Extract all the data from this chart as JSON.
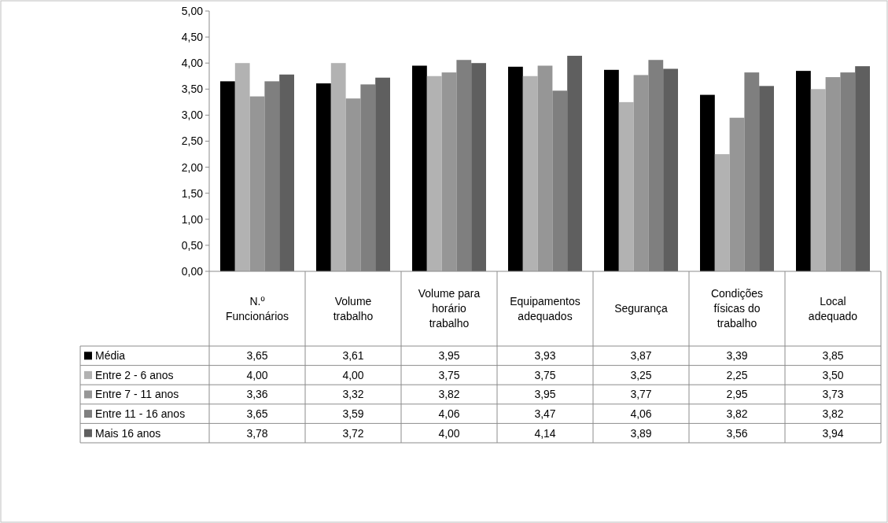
{
  "chart_data": {
    "type": "bar",
    "categories": [
      "N.º Funcionários",
      "Volume trabalho",
      "Volume para horário trabalho",
      "Equipamentos adequados",
      "Segurança",
      "Condições físicas do trabalho",
      "Local adequado"
    ],
    "series": [
      {
        "name": "Média",
        "color": "#000000",
        "values": [
          3.65,
          3.61,
          3.95,
          3.93,
          3.87,
          3.39,
          3.85
        ],
        "value_labels": [
          "3,65",
          "3,61",
          "3,95",
          "3,93",
          "3,87",
          "3,39",
          "3,85"
        ]
      },
      {
        "name": "Entre 2 - 6 anos",
        "color": "#b2b2b2",
        "values": [
          4.0,
          4.0,
          3.75,
          3.75,
          3.25,
          2.25,
          3.5
        ],
        "value_labels": [
          "4,00",
          "4,00",
          "3,75",
          "3,75",
          "3,25",
          "2,25",
          "3,50"
        ]
      },
      {
        "name": "Entre 7 - 11 anos",
        "color": "#969696",
        "values": [
          3.36,
          3.32,
          3.82,
          3.95,
          3.77,
          2.95,
          3.73
        ],
        "value_labels": [
          "3,36",
          "3,32",
          "3,82",
          "3,95",
          "3,77",
          "2,95",
          "3,73"
        ]
      },
      {
        "name": "Entre 11 - 16 anos",
        "color": "#7f7f7f",
        "values": [
          3.65,
          3.59,
          4.06,
          3.47,
          4.06,
          3.82,
          3.82
        ],
        "value_labels": [
          "3,65",
          "3,59",
          "4,06",
          "3,47",
          "4,06",
          "3,82",
          "3,82"
        ]
      },
      {
        "name": "Mais 16 anos",
        "color": "#5f5f5f",
        "values": [
          3.78,
          3.72,
          4.0,
          4.14,
          3.89,
          3.56,
          3.94
        ],
        "value_labels": [
          "3,78",
          "3,72",
          "4,00",
          "4,14",
          "3,89",
          "3,56",
          "3,94"
        ]
      }
    ],
    "ylim": [
      0,
      5
    ],
    "yticks": [
      {
        "value": 0,
        "label": "0,00"
      },
      {
        "value": 0.5,
        "label": "0,50"
      },
      {
        "value": 1,
        "label": "1,00"
      },
      {
        "value": 1.5,
        "label": "1,50"
      },
      {
        "value": 2,
        "label": "2,00"
      },
      {
        "value": 2.5,
        "label": "2,50"
      },
      {
        "value": 3,
        "label": "3,00"
      },
      {
        "value": 3.5,
        "label": "3,50"
      },
      {
        "value": 4,
        "label": "4,00"
      },
      {
        "value": 4.5,
        "label": "4,50"
      },
      {
        "value": 5,
        "label": "5,00"
      }
    ],
    "legend": "bottom",
    "grid": false
  }
}
